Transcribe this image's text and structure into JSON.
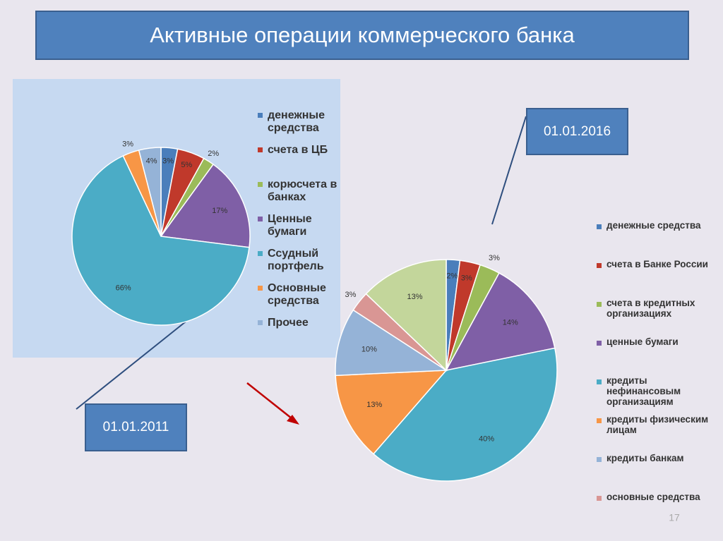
{
  "title": "Активные операции коммерческого банка",
  "page_number": "17",
  "chart_data": [
    {
      "type": "pie",
      "subtitle": "01.01.2011",
      "categories": [
        "денежные средства",
        "счета в ЦБ",
        "корюсчета в банках",
        "Ценные бумаги",
        "Ссудный портфель",
        "Основные средства",
        "Прочее"
      ],
      "values": [
        3,
        5,
        2,
        17,
        66,
        3,
        4
      ],
      "value_labels": [
        "3%",
        "5%",
        "2%",
        "17%",
        "66%",
        "3%",
        "4%"
      ],
      "colors": [
        "#4a7ebb",
        "#c0392b",
        "#9bbb59",
        "#7f5fa6",
        "#4bacc6",
        "#f79646",
        "#95b3d7"
      ]
    },
    {
      "type": "pie",
      "subtitle": "01.01.2016",
      "categories": [
        "денежные средства",
        "счета в Банке России",
        "счета в кредитных организациях",
        "ценные бумаги",
        "кредиты нефинансовым организациям",
        "кредиты физическим лицам",
        "кредиты банкам",
        "основные средства",
        null
      ],
      "values": [
        2,
        3,
        3,
        14,
        40,
        13,
        10,
        3,
        13
      ],
      "value_labels": [
        "2%",
        "3%",
        "3%",
        "14%",
        "40%",
        "13%",
        "10%",
        "3%",
        "13%"
      ],
      "colors": [
        "#4a7ebb",
        "#c0392b",
        "#9bbb59",
        "#7f5fa6",
        "#4bacc6",
        "#f79646",
        "#95b3d7",
        "#d99694",
        "#c3d69b"
      ]
    }
  ]
}
